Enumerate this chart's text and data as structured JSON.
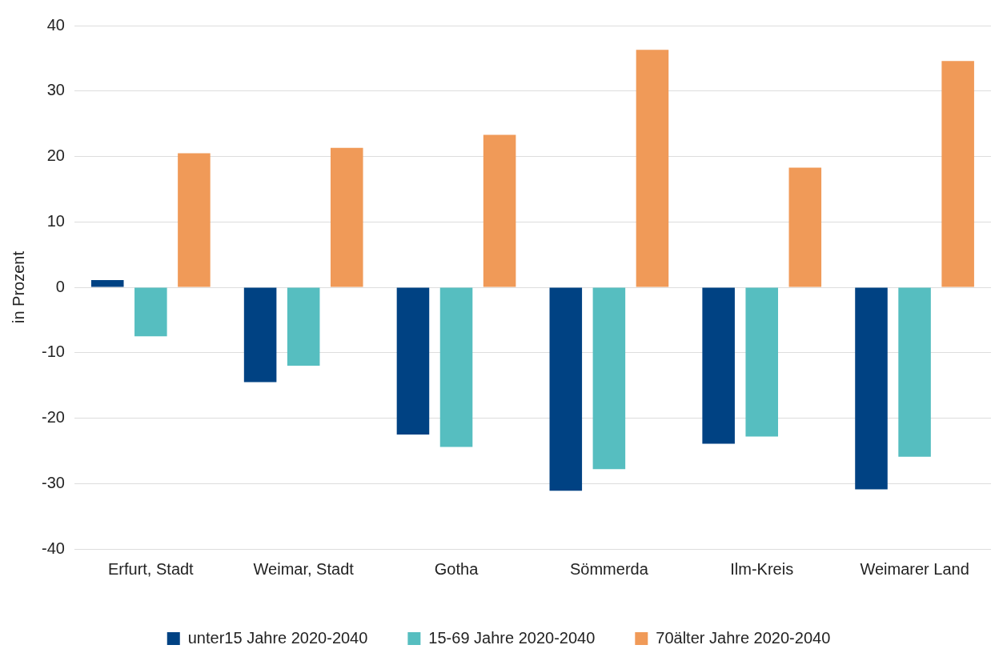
{
  "chart_data": {
    "type": "bar",
    "ylabel": "in Prozent",
    "categories": [
      "Erfurt, Stadt",
      "Weimar, Stadt",
      "Gotha",
      "Sömmerda",
      "Ilm-Kreis",
      "Weimarer Land"
    ],
    "series": [
      {
        "name": "unter15 Jahre 2020-2040",
        "color": "#004283",
        "values": [
          1.1,
          -14.5,
          -22.5,
          -31.1,
          -23.9,
          -30.9
        ]
      },
      {
        "name": "15-69 Jahre 2020-2040",
        "color": "#56bec0",
        "values": [
          -7.5,
          -12.0,
          -24.4,
          -27.8,
          -22.8,
          -25.9
        ]
      },
      {
        "name": "70älter Jahre 2020-2040",
        "color": "#f09a58",
        "values": [
          20.5,
          21.3,
          23.3,
          36.3,
          18.3,
          34.6
        ]
      }
    ],
    "ylim": [
      -40,
      40
    ],
    "yticks": [
      -40,
      -30,
      -20,
      -10,
      0,
      10,
      20,
      30,
      40
    ],
    "grid": "y",
    "legend": "bottom"
  }
}
